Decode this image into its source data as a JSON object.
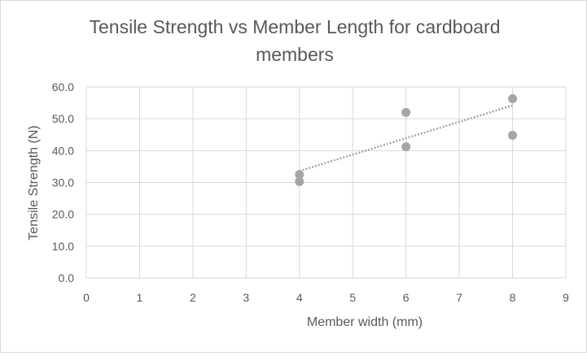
{
  "chart_data": {
    "type": "scatter",
    "title_line1": "Tensile Strength vs Member Length for cardboard",
    "title_line2": "members",
    "xlabel": "Member width (mm)",
    "ylabel": "Tensile Strength (N)",
    "xlim": [
      0,
      9
    ],
    "ylim": [
      0,
      60
    ],
    "x_ticks": [
      0,
      1,
      2,
      3,
      4,
      5,
      6,
      7,
      8,
      9
    ],
    "y_ticks": [
      0,
      10,
      20,
      30,
      40,
      50,
      60
    ],
    "x_tick_labels": [
      "0",
      "1",
      "2",
      "3",
      "4",
      "5",
      "6",
      "7",
      "8",
      "9"
    ],
    "y_tick_labels": [
      "0.0",
      "10.0",
      "20.0",
      "30.0",
      "40.0",
      "50.0",
      "60.0"
    ],
    "grid": true,
    "legend": "none",
    "series": [
      {
        "points": [
          {
            "x": 4,
            "y": 32.5
          },
          {
            "x": 4,
            "y": 30.3
          },
          {
            "x": 6,
            "y": 52.0
          },
          {
            "x": 6,
            "y": 41.2
          },
          {
            "x": 8,
            "y": 56.3
          },
          {
            "x": 8,
            "y": 44.8
          }
        ],
        "color": "#a5a5a5"
      }
    ],
    "trendline": {
      "type": "linear",
      "style": "dotted",
      "color": "#a5a5a5",
      "from": {
        "x": 4,
        "y": 33.6
      },
      "to": {
        "x": 8,
        "y": 54.2
      }
    },
    "colors": {
      "text": "#595959",
      "axis_text": "#595959",
      "grid": "#d9d9d9",
      "border": "#d9d9d9",
      "background": "#ffffff"
    }
  }
}
